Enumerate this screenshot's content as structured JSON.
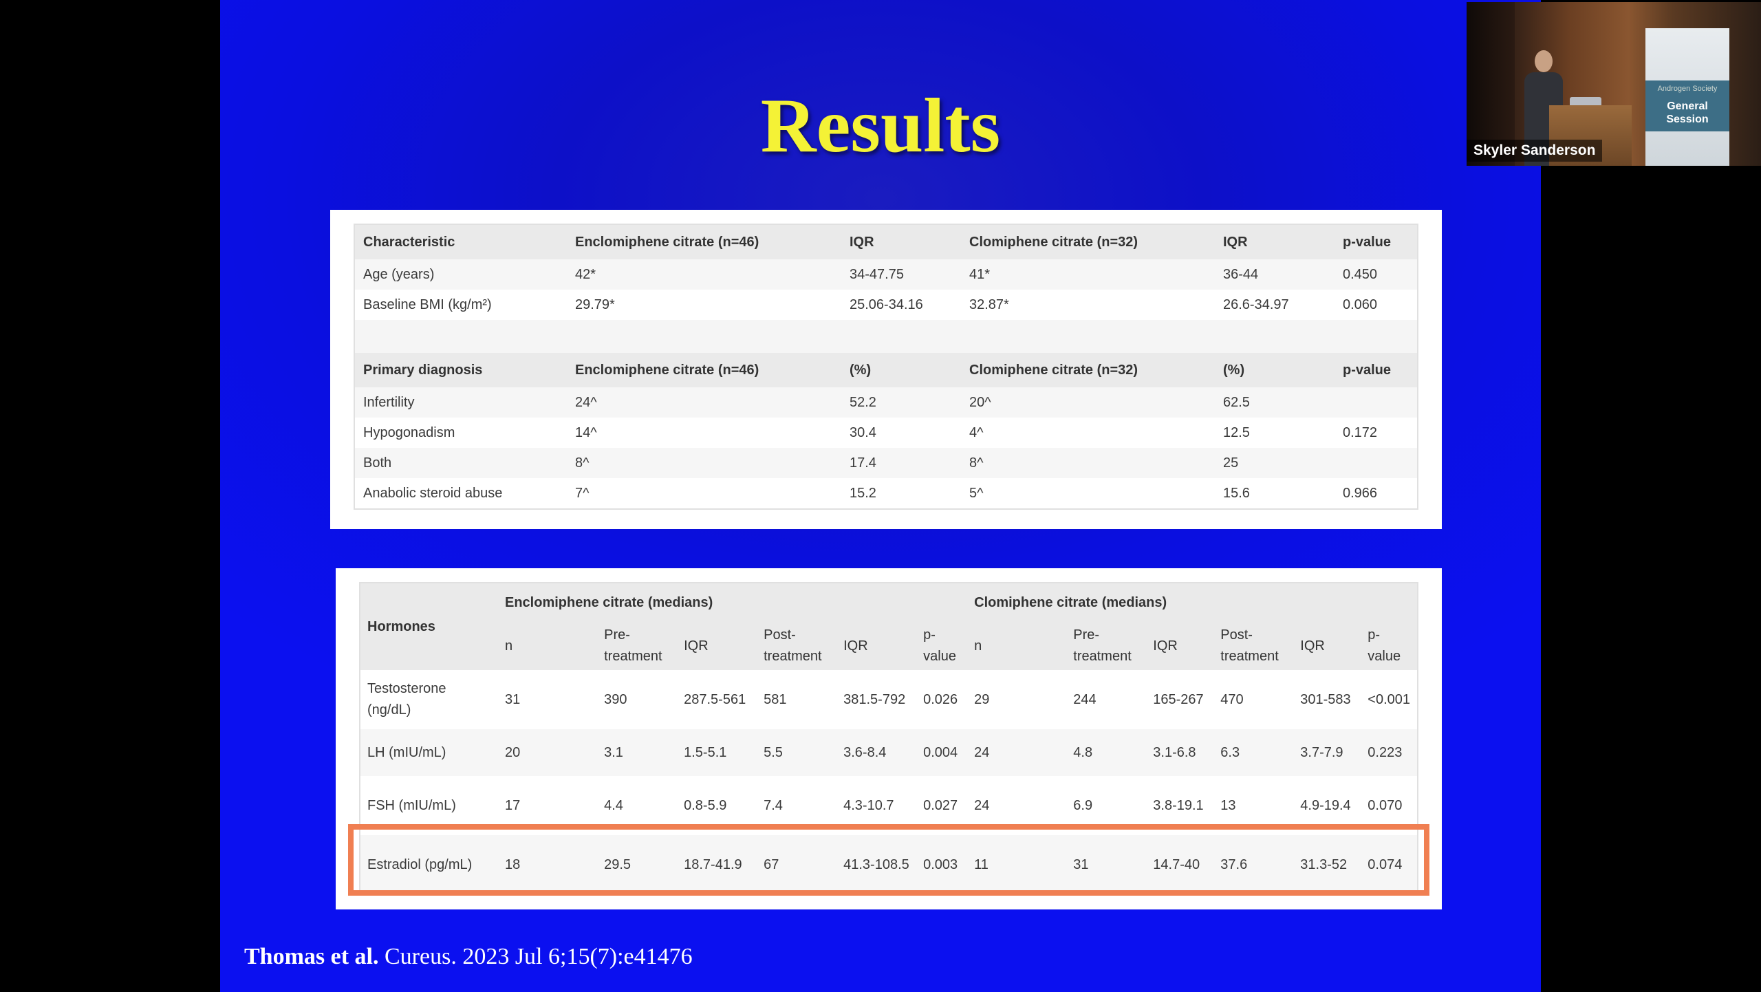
{
  "slide": {
    "title": "Results",
    "citation": {
      "authors": "Thomas et al.",
      "source": "Cureus. 2023 Jul 6;15(7):e41476"
    }
  },
  "table1": {
    "header1": [
      "Characteristic",
      "Enclomiphene citrate (n=46)",
      "IQR",
      "Clomiphene citrate (n=32)",
      "IQR",
      "p-value"
    ],
    "rows1": [
      [
        "Age (years)",
        "42*",
        "34-47.75",
        "41*",
        "36-44",
        "0.450"
      ],
      [
        "Baseline BMI (kg/m²)",
        "29.79*",
        "25.06-34.16",
        "32.87*",
        "26.6-34.97",
        "0.060"
      ]
    ],
    "header2": [
      "Primary diagnosis",
      "Enclomiphene citrate (n=46)",
      "(%)",
      "Clomiphene citrate (n=32)",
      "(%)",
      "p-value"
    ],
    "rows2": [
      [
        "Infertility",
        "24^",
        "52.2",
        "20^",
        "62.5",
        ""
      ],
      [
        "Hypogonadism",
        "14^",
        "30.4",
        "4^",
        "12.5",
        "0.172"
      ],
      [
        "Both",
        "8^",
        "17.4",
        "8^",
        "25",
        ""
      ],
      [
        "Anabolic steroid abuse",
        "7^",
        "15.2",
        "5^",
        "15.6",
        "0.966"
      ]
    ]
  },
  "table2": {
    "hormones_header": "Hormones",
    "group_headers": [
      "Enclomiphene citrate (medians)",
      "Clomiphene citrate (medians)"
    ],
    "sub_headers": [
      "n",
      "Pre-treatment",
      "IQR",
      "Post-treatment",
      "IQR",
      "p-value",
      "n",
      "Pre-treatment",
      "IQR",
      "Post-treatment",
      "IQR",
      "p-value"
    ],
    "rows": [
      [
        "Testosterone (ng/dL)",
        "31",
        "390",
        "287.5-561",
        "581",
        "381.5-792",
        "0.026",
        "29",
        "244",
        "165-267",
        "470",
        "301-583",
        "<0.001"
      ],
      [
        "LH (mIU/mL)",
        "20",
        "3.1",
        "1.5-5.1",
        "5.5",
        "3.6-8.4",
        "0.004",
        "24",
        "4.8",
        "3.1-6.8",
        "6.3",
        "3.7-7.9",
        "0.223"
      ],
      [
        "FSH (mIU/mL)",
        "17",
        "4.4",
        "0.8-5.9",
        "7.4",
        "4.3-10.7",
        "0.027",
        "24",
        "6.9",
        "3.8-19.1",
        "13",
        "4.9-19.4",
        "0.070"
      ],
      [
        "Estradiol (pg/mL)",
        "18",
        "29.5",
        "18.7-41.9",
        "67",
        "41.3-108.5",
        "0.003",
        "11",
        "31",
        "14.7-40",
        "37.6",
        "31.3-52",
        "0.074"
      ]
    ],
    "highlighted_row": "Estradiol (pg/mL)",
    "highlight_color": "#f07f52"
  },
  "video": {
    "speaker_name": "Skyler Sanderson",
    "banner_org": "Androgen Society",
    "banner_session": "General Session"
  },
  "colors": {
    "slide_background": "#0b10e0",
    "title_color": "#f4f236",
    "letterbox": "#000000"
  }
}
